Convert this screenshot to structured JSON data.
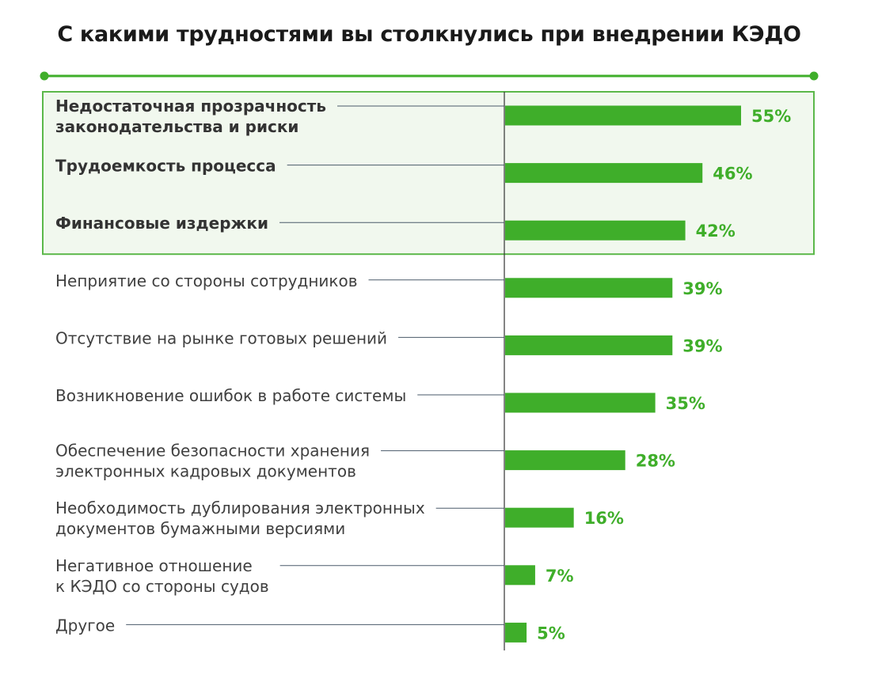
{
  "chart_data": {
    "type": "bar",
    "orientation": "horizontal",
    "title": "С какими трудностями вы столкнулись при внедрении КЭДО",
    "categories": [
      "Недостаточная прозрачность законодательства и риски",
      "Трудоемкость процесса",
      "Финансовые издержки",
      "Неприятие со стороны сотрудников",
      "Отсутствие на рынке готовых решений",
      "Возникновение ошибок в работе системы",
      "Обеспечение безопасности хранения электронных кадровых документов",
      "Необходимость дублирования электронных документов бумажными версиями",
      "Негативное отношение к КЭДО со стороны судов",
      "Другое"
    ],
    "label_lines": [
      [
        "Недостаточная прозрачность",
        "законодательства и риски"
      ],
      [
        "Трудоемкость процесса"
      ],
      [
        "Финансовые издержки"
      ],
      [
        "Неприятие со стороны сотрудников"
      ],
      [
        "Отсутствие на рынке готовых решений"
      ],
      [
        "Возникновение ошибок в работе системы"
      ],
      [
        "Обеспечение безопасности хранения",
        "электронных кадровых документов"
      ],
      [
        "Необходимость дублирования электронных",
        "документов бумажными версиями"
      ],
      [
        "Негативное отношение",
        "к КЭДО со стороны судов"
      ],
      [
        "Другое"
      ]
    ],
    "values": [
      55,
      46,
      42,
      39,
      39,
      35,
      28,
      16,
      7,
      5
    ],
    "value_labels": [
      "55%",
      "46%",
      "42%",
      "39%",
      "39%",
      "35%",
      "28%",
      "16%",
      "7%",
      "5%"
    ],
    "unit": "%",
    "xlim": [
      0,
      60
    ],
    "highlighted_top": 3,
    "grid": false,
    "legend": "none",
    "colors": {
      "bar": "#3fae2a",
      "value_text": "#3fae2a",
      "highlight_fill": "#f1f8ee",
      "highlight_border": "#5cb84a",
      "rule": "#3fae2a",
      "leader": "#4a5a6a",
      "axis": "#333333"
    }
  }
}
